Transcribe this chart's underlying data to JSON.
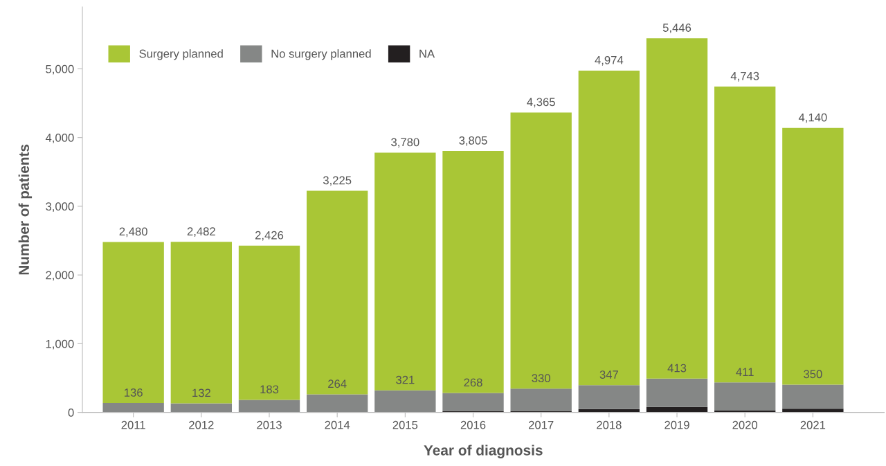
{
  "chart_data": {
    "type": "bar",
    "stacked": true,
    "xlabel": "Year of diagnosis",
    "ylabel": "Number of patients",
    "categories": [
      "2011",
      "2012",
      "2013",
      "2014",
      "2015",
      "2016",
      "2017",
      "2018",
      "2019",
      "2020",
      "2021"
    ],
    "series": [
      {
        "name": "NA",
        "color": "#231f20",
        "values": [
          0,
          0,
          0,
          0,
          null,
          15,
          15,
          50,
          80,
          25,
          55
        ]
      },
      {
        "name": "No surgery planned",
        "color": "#858786",
        "values": [
          136,
          132,
          183,
          264,
          321,
          268,
          330,
          347,
          413,
          411,
          350
        ],
        "value_labels": [
          "136",
          "132",
          "183",
          "264",
          "321",
          "268",
          "330",
          "347",
          "413",
          "411",
          "350"
        ]
      },
      {
        "name": "Surgery planned",
        "color": "#a9c636",
        "values": [
          2344,
          2350,
          2243,
          2961,
          3459,
          3522,
          4020,
          4577,
          4953,
          4307,
          3735
        ]
      }
    ],
    "totals": [
      "2,480",
      "2,482",
      "2,426",
      "3,225",
      "3,780",
      "3,805",
      "4,365",
      "4,974",
      "5,446",
      "4,743",
      "4,140"
    ],
    "ylim": [
      0,
      5900
    ],
    "yticks": [
      {
        "value": 0,
        "label": "0"
      },
      {
        "value": 1000,
        "label": "1,000"
      },
      {
        "value": 2000,
        "label": "2,000"
      },
      {
        "value": 3000,
        "label": "3,000"
      },
      {
        "value": 4000,
        "label": "4,000"
      },
      {
        "value": 5000,
        "label": "5,000"
      }
    ],
    "grid": false,
    "legend": "top left"
  }
}
